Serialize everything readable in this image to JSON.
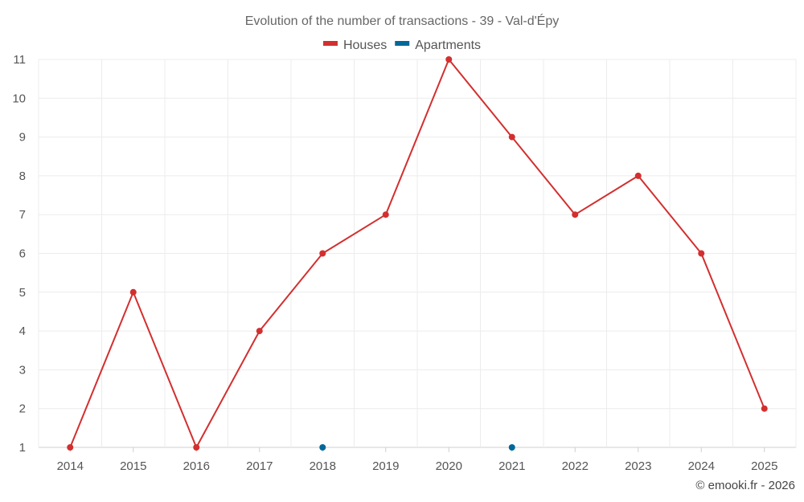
{
  "chart_data": {
    "type": "line",
    "title": "Evolution of the number of transactions - 39 - Val-d'Épy",
    "x": [
      2014,
      2015,
      2016,
      2017,
      2018,
      2019,
      2020,
      2021,
      2022,
      2023,
      2024,
      2025
    ],
    "y_ticks": [
      1,
      2,
      3,
      4,
      5,
      6,
      7,
      8,
      9,
      10,
      11
    ],
    "ylim": [
      1,
      11
    ],
    "grid": true,
    "legend_position": "top-center",
    "series": [
      {
        "name": "Houses",
        "color": "#d32f2f",
        "points": [
          {
            "x": 2014,
            "y": 1
          },
          {
            "x": 2015,
            "y": 5
          },
          {
            "x": 2016,
            "y": 1
          },
          {
            "x": 2017,
            "y": 4
          },
          {
            "x": 2018,
            "y": 6
          },
          {
            "x": 2019,
            "y": 7
          },
          {
            "x": 2020,
            "y": 11
          },
          {
            "x": 2021,
            "y": 9
          },
          {
            "x": 2022,
            "y": 7
          },
          {
            "x": 2023,
            "y": 8
          },
          {
            "x": 2024,
            "y": 6
          },
          {
            "x": 2025,
            "y": 2
          }
        ],
        "connect": true
      },
      {
        "name": "Apartments",
        "color": "#01689b",
        "points": [
          {
            "x": 2018,
            "y": 1
          },
          {
            "x": 2021,
            "y": 1
          }
        ],
        "connect": false
      }
    ]
  },
  "credit": "© emooki.fr - 2026"
}
